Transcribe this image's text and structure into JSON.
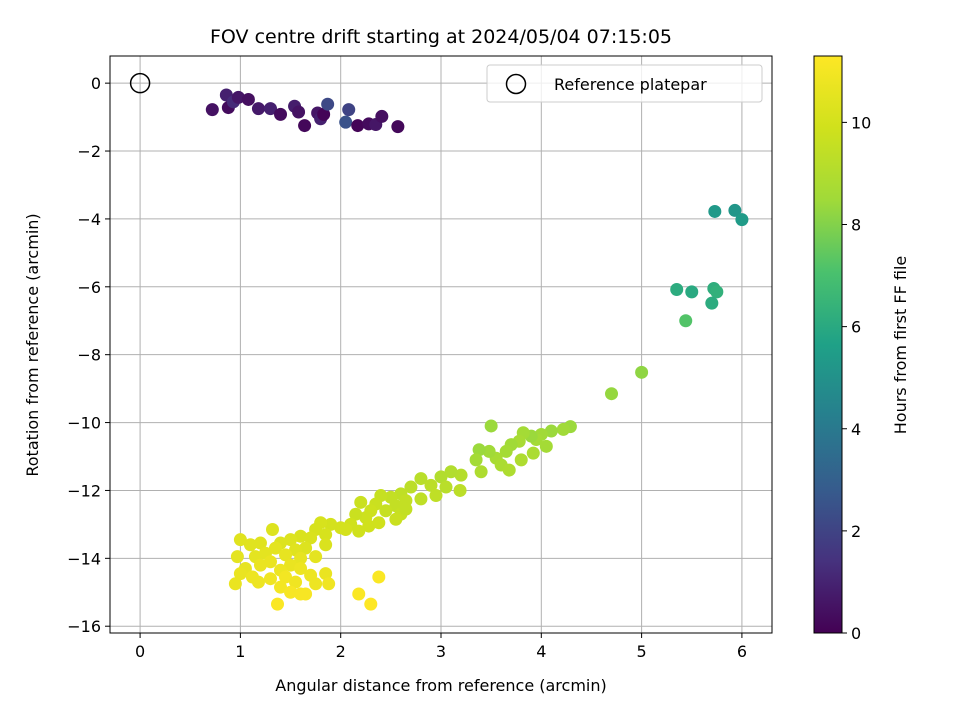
{
  "chart_data": {
    "type": "scatter",
    "title": "FOV centre drift starting at 2024/05/04 07:15:05",
    "xlabel": "Angular distance from reference (arcmin)",
    "ylabel": "Rotation from reference (arcmin)",
    "xlim": [
      -0.3,
      6.3
    ],
    "ylim": [
      -16.2,
      0.8
    ],
    "xticks": [
      0,
      1,
      2,
      3,
      4,
      5,
      6
    ],
    "yticks": [
      0,
      -2,
      -4,
      -6,
      -8,
      -10,
      -12,
      -14,
      -16
    ],
    "grid": true,
    "legend": {
      "position": "upper-right",
      "entries": [
        "Reference platepar"
      ]
    },
    "reference_point": {
      "x": 0,
      "y": 0,
      "label": "Reference platepar",
      "marker": "open-circle"
    },
    "colorbar": {
      "label": "Hours from first FF file",
      "min": 0,
      "max": 11.3,
      "ticks": [
        0,
        2,
        4,
        6,
        8,
        10
      ],
      "colormap": "viridis"
    },
    "points": [
      {
        "x": 0.72,
        "y": -0.78,
        "h": 0.5
      },
      {
        "x": 0.86,
        "y": -0.35,
        "h": 0.9
      },
      {
        "x": 0.88,
        "y": -0.72,
        "h": 0.3
      },
      {
        "x": 0.93,
        "y": -0.55,
        "h": 1.2
      },
      {
        "x": 0.98,
        "y": -0.42,
        "h": 0.6
      },
      {
        "x": 1.08,
        "y": -0.48,
        "h": 0.4
      },
      {
        "x": 1.18,
        "y": -0.75,
        "h": 0.7
      },
      {
        "x": 1.3,
        "y": -0.75,
        "h": 0.9
      },
      {
        "x": 1.4,
        "y": -0.92,
        "h": 0.3
      },
      {
        "x": 1.54,
        "y": -0.68,
        "h": 0.8
      },
      {
        "x": 1.58,
        "y": -0.85,
        "h": 0.5
      },
      {
        "x": 1.64,
        "y": -1.25,
        "h": 0.2
      },
      {
        "x": 1.77,
        "y": -0.88,
        "h": 0.6
      },
      {
        "x": 1.8,
        "y": -1.05,
        "h": 0.9
      },
      {
        "x": 1.83,
        "y": -0.92,
        "h": 0.1
      },
      {
        "x": 1.87,
        "y": -0.62,
        "h": 2.2
      },
      {
        "x": 2.05,
        "y": -1.15,
        "h": 2.5
      },
      {
        "x": 2.08,
        "y": -0.78,
        "h": 2.0
      },
      {
        "x": 2.17,
        "y": -1.25,
        "h": 0.1
      },
      {
        "x": 2.28,
        "y": -1.2,
        "h": 0.3
      },
      {
        "x": 2.35,
        "y": -1.22,
        "h": 0.6
      },
      {
        "x": 2.41,
        "y": -0.98,
        "h": 0.4
      },
      {
        "x": 2.57,
        "y": -1.28,
        "h": 0.2
      },
      {
        "x": 5.73,
        "y": -3.78,
        "h": 5.3
      },
      {
        "x": 5.93,
        "y": -3.75,
        "h": 5.2
      },
      {
        "x": 6.0,
        "y": -4.02,
        "h": 5.4
      },
      {
        "x": 5.35,
        "y": -6.08,
        "h": 6.1
      },
      {
        "x": 5.5,
        "y": -6.15,
        "h": 6.0
      },
      {
        "x": 5.72,
        "y": -6.05,
        "h": 6.2
      },
      {
        "x": 5.75,
        "y": -6.15,
        "h": 6.3
      },
      {
        "x": 5.7,
        "y": -6.48,
        "h": 6.1
      },
      {
        "x": 5.44,
        "y": -7.0,
        "h": 7.2
      },
      {
        "x": 5.0,
        "y": -8.52,
        "h": 8.2
      },
      {
        "x": 4.7,
        "y": -9.15,
        "h": 8.3
      },
      {
        "x": 4.29,
        "y": -10.12,
        "h": 8.4
      },
      {
        "x": 4.22,
        "y": -10.2,
        "h": 8.5
      },
      {
        "x": 4.1,
        "y": -10.25,
        "h": 8.4
      },
      {
        "x": 4.0,
        "y": -10.35,
        "h": 8.5
      },
      {
        "x": 3.95,
        "y": -10.5,
        "h": 8.6
      },
      {
        "x": 3.9,
        "y": -10.4,
        "h": 8.4
      },
      {
        "x": 3.82,
        "y": -10.3,
        "h": 8.6
      },
      {
        "x": 3.78,
        "y": -10.55,
        "h": 8.7
      },
      {
        "x": 3.7,
        "y": -10.65,
        "h": 8.5
      },
      {
        "x": 3.5,
        "y": -10.1,
        "h": 8.4
      },
      {
        "x": 3.65,
        "y": -10.85,
        "h": 8.6
      },
      {
        "x": 3.55,
        "y": -11.05,
        "h": 8.7
      },
      {
        "x": 3.48,
        "y": -10.85,
        "h": 8.5
      },
      {
        "x": 3.38,
        "y": -10.8,
        "h": 8.4
      },
      {
        "x": 3.35,
        "y": -11.1,
        "h": 8.6
      },
      {
        "x": 3.92,
        "y": -10.9,
        "h": 8.8
      },
      {
        "x": 4.05,
        "y": -10.7,
        "h": 8.6
      },
      {
        "x": 3.8,
        "y": -11.1,
        "h": 8.9
      },
      {
        "x": 3.6,
        "y": -11.25,
        "h": 8.8
      },
      {
        "x": 3.68,
        "y": -11.4,
        "h": 8.9
      },
      {
        "x": 3.4,
        "y": -11.45,
        "h": 8.9
      },
      {
        "x": 3.2,
        "y": -11.55,
        "h": 9.1
      },
      {
        "x": 3.1,
        "y": -11.45,
        "h": 9.0
      },
      {
        "x": 3.0,
        "y": -11.6,
        "h": 9.0
      },
      {
        "x": 2.8,
        "y": -11.65,
        "h": 9.2
      },
      {
        "x": 3.05,
        "y": -11.9,
        "h": 9.2
      },
      {
        "x": 2.9,
        "y": -11.85,
        "h": 9.3
      },
      {
        "x": 3.19,
        "y": -12.0,
        "h": 9.3
      },
      {
        "x": 2.95,
        "y": -12.15,
        "h": 9.4
      },
      {
        "x": 2.7,
        "y": -11.9,
        "h": 9.3
      },
      {
        "x": 2.6,
        "y": -12.1,
        "h": 9.4
      },
      {
        "x": 2.65,
        "y": -12.3,
        "h": 9.5
      },
      {
        "x": 2.8,
        "y": -12.25,
        "h": 9.4
      },
      {
        "x": 2.5,
        "y": -12.2,
        "h": 9.5
      },
      {
        "x": 2.4,
        "y": -12.15,
        "h": 9.6
      },
      {
        "x": 2.55,
        "y": -12.45,
        "h": 9.5
      },
      {
        "x": 2.45,
        "y": -12.6,
        "h": 9.6
      },
      {
        "x": 2.35,
        "y": -12.4,
        "h": 9.7
      },
      {
        "x": 2.2,
        "y": -12.35,
        "h": 9.7
      },
      {
        "x": 2.3,
        "y": -12.6,
        "h": 9.8
      },
      {
        "x": 2.25,
        "y": -12.8,
        "h": 9.8
      },
      {
        "x": 2.15,
        "y": -12.7,
        "h": 9.7
      },
      {
        "x": 2.6,
        "y": -12.7,
        "h": 9.6
      },
      {
        "x": 2.65,
        "y": -12.55,
        "h": 9.5
      },
      {
        "x": 2.55,
        "y": -12.85,
        "h": 9.7
      },
      {
        "x": 2.38,
        "y": -12.95,
        "h": 9.9
      },
      {
        "x": 2.28,
        "y": -13.05,
        "h": 9.9
      },
      {
        "x": 2.1,
        "y": -13.0,
        "h": 9.9
      },
      {
        "x": 2.0,
        "y": -13.1,
        "h": 10.0
      },
      {
        "x": 1.9,
        "y": -13.0,
        "h": 10.0
      },
      {
        "x": 1.8,
        "y": -12.95,
        "h": 10.1
      },
      {
        "x": 2.05,
        "y": -13.15,
        "h": 10.0
      },
      {
        "x": 2.18,
        "y": -13.2,
        "h": 9.9
      },
      {
        "x": 1.75,
        "y": -13.15,
        "h": 10.1
      },
      {
        "x": 1.85,
        "y": -13.3,
        "h": 10.1
      },
      {
        "x": 1.7,
        "y": -13.4,
        "h": 10.2
      },
      {
        "x": 1.6,
        "y": -13.35,
        "h": 10.2
      },
      {
        "x": 1.5,
        "y": -13.45,
        "h": 10.3
      },
      {
        "x": 1.32,
        "y": -13.15,
        "h": 10.3
      },
      {
        "x": 1.4,
        "y": -13.55,
        "h": 10.3
      },
      {
        "x": 1.2,
        "y": -13.55,
        "h": 10.4
      },
      {
        "x": 1.1,
        "y": -13.6,
        "h": 10.4
      },
      {
        "x": 1.0,
        "y": -13.45,
        "h": 10.4
      },
      {
        "x": 1.85,
        "y": -13.6,
        "h": 10.2
      },
      {
        "x": 1.65,
        "y": -13.7,
        "h": 10.3
      },
      {
        "x": 1.55,
        "y": -13.75,
        "h": 10.4
      },
      {
        "x": 1.35,
        "y": -13.7,
        "h": 10.5
      },
      {
        "x": 1.25,
        "y": -13.85,
        "h": 10.5
      },
      {
        "x": 1.15,
        "y": -13.95,
        "h": 10.5
      },
      {
        "x": 0.97,
        "y": -13.95,
        "h": 10.5
      },
      {
        "x": 1.45,
        "y": -13.9,
        "h": 10.6
      },
      {
        "x": 1.6,
        "y": -14.0,
        "h": 10.6
      },
      {
        "x": 1.75,
        "y": -13.95,
        "h": 10.5
      },
      {
        "x": 1.3,
        "y": -14.1,
        "h": 10.7
      },
      {
        "x": 1.2,
        "y": -14.2,
        "h": 10.7
      },
      {
        "x": 1.05,
        "y": -14.3,
        "h": 10.6
      },
      {
        "x": 1.5,
        "y": -14.2,
        "h": 10.7
      },
      {
        "x": 1.4,
        "y": -14.35,
        "h": 10.8
      },
      {
        "x": 1.6,
        "y": -14.3,
        "h": 10.8
      },
      {
        "x": 1.7,
        "y": -14.5,
        "h": 10.8
      },
      {
        "x": 1.85,
        "y": -14.45,
        "h": 10.7
      },
      {
        "x": 1.0,
        "y": -14.45,
        "h": 10.7
      },
      {
        "x": 1.12,
        "y": -14.55,
        "h": 10.8
      },
      {
        "x": 1.3,
        "y": -14.6,
        "h": 10.9
      },
      {
        "x": 1.45,
        "y": -14.55,
        "h": 11.0
      },
      {
        "x": 1.55,
        "y": -14.7,
        "h": 10.9
      },
      {
        "x": 1.75,
        "y": -14.75,
        "h": 10.8
      },
      {
        "x": 1.88,
        "y": -14.75,
        "h": 10.9
      },
      {
        "x": 1.18,
        "y": -14.7,
        "h": 10.8
      },
      {
        "x": 0.95,
        "y": -14.75,
        "h": 10.7
      },
      {
        "x": 1.4,
        "y": -14.85,
        "h": 11.0
      },
      {
        "x": 1.5,
        "y": -15.0,
        "h": 11.1
      },
      {
        "x": 1.6,
        "y": -15.05,
        "h": 11.1
      },
      {
        "x": 1.65,
        "y": -15.05,
        "h": 11.1
      },
      {
        "x": 1.37,
        "y": -15.35,
        "h": 11.2
      },
      {
        "x": 2.38,
        "y": -14.55,
        "h": 11.2
      },
      {
        "x": 2.18,
        "y": -15.05,
        "h": 11.2
      },
      {
        "x": 2.3,
        "y": -15.35,
        "h": 11.3
      }
    ]
  }
}
